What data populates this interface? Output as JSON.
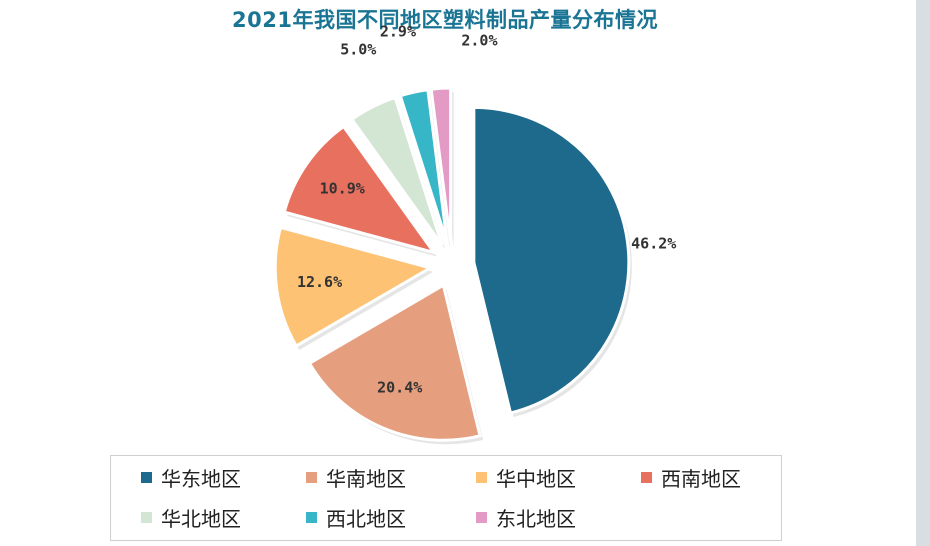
{
  "chart_data": {
    "type": "pie",
    "title": "2021年我国不同地区塑料制品产量分布情况",
    "unit": "%",
    "slices": [
      {
        "label": "华东地区",
        "value": 46.2,
        "display": "46.2%",
        "color": "#1d6a8c"
      },
      {
        "label": "华南地区",
        "value": 20.4,
        "display": "20.4%",
        "color": "#e59e7e"
      },
      {
        "label": "华中地区",
        "value": 12.6,
        "display": "12.6%",
        "color": "#fdc274"
      },
      {
        "label": "西南地区",
        "value": 10.9,
        "display": "10.9%",
        "color": "#e8705f"
      },
      {
        "label": "华北地区",
        "value": 5.0,
        "display": "5.0%",
        "color": "#d3e5d3"
      },
      {
        "label": "西北地区",
        "value": 2.9,
        "display": "2.9%",
        "color": "#36b6c6"
      },
      {
        "label": "东北地区",
        "value": 2.0,
        "display": "2.0%",
        "color": "#e39ac4"
      }
    ],
    "legend_position": "bottom"
  }
}
